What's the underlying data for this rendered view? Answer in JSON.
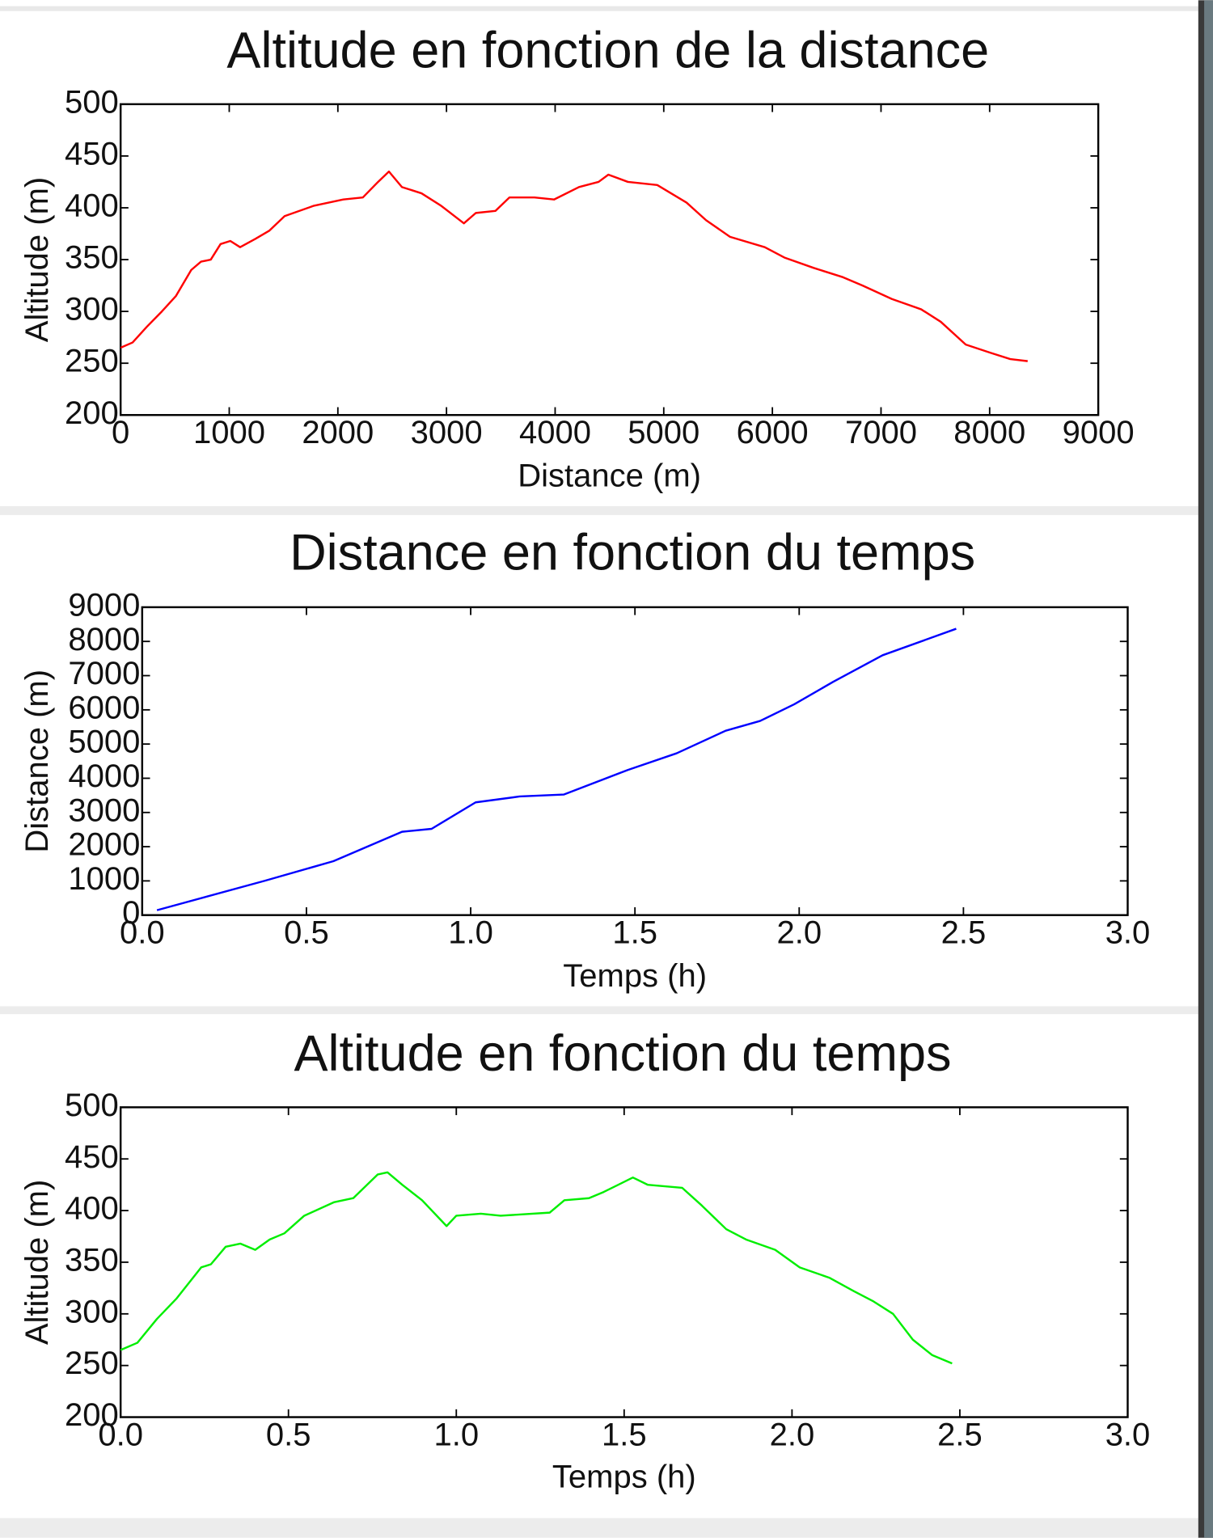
{
  "chart_data": [
    {
      "type": "line",
      "title": "Altitude en fonction de la distance",
      "xlabel": "Distance (m)",
      "ylabel": "Altitude (m)",
      "color": "#ff0000",
      "x": [
        0,
        110,
        240,
        380,
        510,
        650,
        740,
        830,
        920,
        1010,
        1100,
        1240,
        1370,
        1510,
        1780,
        2050,
        2230,
        2370,
        2470,
        2590,
        2770,
        2950,
        3160,
        3270,
        3450,
        3580,
        3810,
        3990,
        4220,
        4400,
        4490,
        4670,
        4940,
        5210,
        5390,
        5610,
        5930,
        6110,
        6380,
        6650,
        6830,
        7100,
        7370,
        7550,
        7780,
        8010,
        8190,
        8350
      ],
      "values": [
        265,
        270,
        285,
        300,
        315,
        340,
        348,
        350,
        365,
        368,
        362,
        370,
        378,
        392,
        402,
        408,
        410,
        425,
        435,
        420,
        414,
        402,
        385,
        395,
        397,
        410,
        410,
        408,
        420,
        425,
        432,
        425,
        422,
        405,
        388,
        372,
        362,
        352,
        342,
        333,
        325,
        312,
        302,
        290,
        268,
        260,
        254,
        252
      ],
      "xlim": [
        0,
        9000
      ],
      "ylim": [
        200,
        500
      ],
      "xticks": [
        0,
        1000,
        2000,
        3000,
        4000,
        5000,
        6000,
        7000,
        8000,
        9000
      ],
      "yticks": [
        200,
        250,
        300,
        350,
        400,
        450,
        500
      ]
    },
    {
      "type": "line",
      "title": "Distance en fonction du temps",
      "xlabel": "Temps (h)",
      "ylabel": "Distance (m)",
      "color": "#0000ff",
      "x": [
        0.045,
        0.373,
        0.582,
        0.791,
        0.881,
        1.015,
        1.149,
        1.284,
        1.478,
        1.627,
        1.776,
        1.881,
        1.985,
        2.104,
        2.254,
        2.478
      ],
      "values": [
        143,
        1003,
        1576,
        2436,
        2522,
        3296,
        3468,
        3525,
        4242,
        4730,
        5389,
        5675,
        6163,
        6822,
        7596,
        8370
      ],
      "xlim": [
        0,
        3
      ],
      "ylim": [
        0,
        9000
      ],
      "xticks": [
        {
          "value": 0,
          "label": "0.0"
        },
        0.5,
        {
          "value": 1,
          "label": "1.0"
        },
        1.5,
        {
          "value": 2,
          "label": "2.0"
        },
        2.5,
        {
          "value": 3,
          "label": "3.0"
        }
      ],
      "yticks": [
        0,
        1000,
        2000,
        3000,
        4000,
        5000,
        6000,
        7000,
        8000,
        9000
      ]
    },
    {
      "type": "line",
      "title": "Altitude en fonction du temps",
      "xlabel": "Temps (h)",
      "ylabel": "Altitude (m)",
      "color": "#00ee00",
      "x": [
        0,
        0.05,
        0.108,
        0.167,
        0.24,
        0.269,
        0.313,
        0.357,
        0.401,
        0.444,
        0.488,
        0.547,
        0.635,
        0.693,
        0.766,
        0.795,
        0.839,
        0.898,
        0.971,
        1.0,
        1.073,
        1.132,
        1.278,
        1.322,
        1.395,
        1.439,
        1.526,
        1.57,
        1.673,
        1.731,
        1.804,
        1.863,
        1.95,
        2.023,
        2.111,
        2.184,
        2.243,
        2.301,
        2.36,
        2.418,
        2.477
      ],
      "values": [
        265,
        272,
        295,
        315,
        345,
        348,
        365,
        368,
        362,
        372,
        378,
        395,
        408,
        412,
        435,
        437,
        425,
        410,
        385,
        395,
        397,
        395,
        398,
        410,
        412,
        418,
        432,
        425,
        422,
        405,
        382,
        372,
        362,
        345,
        335,
        322,
        312,
        300,
        275,
        260,
        252
      ],
      "xlim": [
        0,
        3
      ],
      "ylim": [
        200,
        500
      ],
      "xticks": [
        {
          "value": 0,
          "label": "0.0"
        },
        0.5,
        {
          "value": 1,
          "label": "1.0"
        },
        1.5,
        {
          "value": 2,
          "label": "2.0"
        },
        2.5,
        {
          "value": 3,
          "label": "3.0"
        }
      ],
      "yticks": [
        200,
        250,
        300,
        350,
        400,
        450,
        500
      ]
    }
  ]
}
